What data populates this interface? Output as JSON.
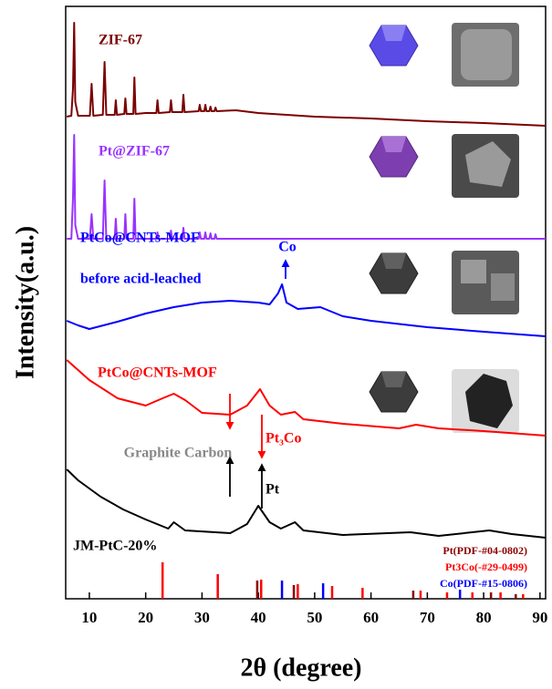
{
  "chart_data": {
    "type": "line",
    "x_label": "2θ (degree)",
    "y_label": "Intensity(a.u.)",
    "xlim": [
      5.8,
      91
    ],
    "ylim": [
      0,
      650
    ],
    "xticks": [
      10,
      20,
      30,
      40,
      50,
      60,
      70,
      80,
      90
    ],
    "series": [
      {
        "name": "ZIF-67",
        "color": "#7b0000",
        "x": [
          6,
          6.8,
          7.1,
          7.3,
          7.5,
          8,
          10.1,
          10.4,
          10.7,
          12.4,
          12.7,
          13,
          14.5,
          14.7,
          14.9,
          16.2,
          16.4,
          16.6,
          17.8,
          18,
          18.2,
          20,
          21.9,
          22.1,
          22.3,
          24.3,
          24.5,
          24.7,
          26.5,
          26.7,
          26.9,
          29.4,
          29.6,
          29.8,
          30.4,
          30.6,
          30.8,
          31.3,
          31.5,
          31.7,
          32.2,
          32.4,
          32.6,
          36,
          40,
          50,
          60,
          70,
          80,
          91
        ],
        "values": [
          529,
          530,
          560,
          632,
          545,
          530,
          530,
          565,
          530,
          531,
          589,
          531,
          531,
          547,
          531,
          532,
          549,
          532,
          532,
          572,
          532,
          533,
          533,
          547,
          533,
          534,
          547,
          534,
          534,
          553,
          534,
          535,
          542,
          535,
          535,
          542,
          535,
          535,
          540,
          535,
          535,
          539,
          535,
          536,
          533,
          529,
          527,
          524,
          522,
          519
        ]
      },
      {
        "name": "Pt@ZIF-67",
        "color": "#9933ff",
        "x": [
          6,
          6.8,
          7.1,
          7.3,
          7.5,
          8,
          10.1,
          10.4,
          10.7,
          12.4,
          12.7,
          13,
          14.5,
          14.7,
          14.9,
          16.2,
          16.4,
          16.6,
          17.8,
          18,
          18.2,
          20,
          21.9,
          22.1,
          22.3,
          24.3,
          24.5,
          24.7,
          26.5,
          26.7,
          26.9,
          29.4,
          29.6,
          29.8,
          30.4,
          30.6,
          30.8,
          31.3,
          31.5,
          31.7,
          32.2,
          32.4,
          32.6,
          36,
          40,
          50,
          60,
          70,
          80,
          91
        ],
        "values": [
          395,
          395,
          440,
          509,
          410,
          395,
          395,
          422,
          395,
          395,
          459,
          395,
          395,
          417,
          395,
          395,
          422,
          395,
          395,
          439,
          395,
          395,
          395,
          402,
          395,
          395,
          404,
          395,
          395,
          407,
          395,
          395,
          402,
          395,
          395,
          402,
          395,
          395,
          401,
          395,
          395,
          400,
          395,
          395,
          395,
          395,
          395,
          395,
          395,
          395
        ]
      },
      {
        "name": "PtCo@CNTs-MOF",
        "subtitle": "before acid-leached",
        "color": "#0000ff",
        "x": [
          6,
          8,
          10,
          15,
          20,
          25,
          30,
          35,
          40,
          42,
          43.5,
          44.2,
          45,
          47,
          51,
          55,
          60,
          70,
          80,
          91
        ],
        "values": [
          305,
          300,
          296,
          304,
          313,
          320,
          325,
          327,
          325,
          323,
          335,
          345,
          325,
          318,
          320,
          310,
          305,
          298,
          293,
          288
        ]
      },
      {
        "name": "PtCo@CNTs-MOF",
        "color": "#ff0000",
        "x": [
          6,
          10,
          15,
          20,
          23,
          25,
          27,
          30,
          35,
          38,
          40.3,
          42,
          44,
          46.5,
          48,
          55,
          65,
          68,
          72,
          80,
          91
        ],
        "values": [
          262,
          240,
          220,
          212,
          220,
          225,
          218,
          204,
          202,
          212,
          230,
          212,
          202,
          205,
          197,
          192,
          187,
          191,
          187,
          184,
          179
        ]
      },
      {
        "name": "JM-PtC-20%",
        "color": "#000000",
        "x": [
          6,
          8,
          12,
          16,
          20,
          24,
          25,
          27,
          35,
          38,
          40,
          42,
          44,
          46.5,
          48,
          55,
          67,
          72,
          81,
          85,
          91
        ],
        "values": [
          142,
          130,
          112,
          98,
          87,
          77,
          84,
          75,
          72,
          82,
          102,
          84,
          77,
          84,
          75,
          70,
          73,
          69,
          75,
          71,
          67
        ]
      }
    ],
    "reference_patterns": [
      {
        "name": "Pt(PDF-#04-0802)",
        "color": "#8b0000",
        "x": [
          39.8,
          46.3,
          67.5,
          81.3,
          85.7
        ],
        "values": [
          20,
          15,
          9,
          7,
          5
        ]
      },
      {
        "name": "Pt3Co(-#29-0499)",
        "color": "#ff0000",
        "x": [
          23.0,
          32.8,
          40.5,
          47.0,
          53.1,
          58.5,
          68.8,
          73.5,
          78,
          83,
          87
        ],
        "values": [
          40,
          27,
          21,
          16,
          14,
          12,
          9,
          7,
          7,
          7,
          5
        ]
      },
      {
        "name": "Co(PDF-#15-0806)",
        "color": "#0000ff",
        "x": [
          44.2,
          51.5,
          75.8
        ],
        "values": [
          20,
          17,
          10
        ]
      }
    ],
    "annotations": [
      "Co",
      "Graphite Carbon",
      "Pt₃Co",
      "Pt"
    ]
  }
}
